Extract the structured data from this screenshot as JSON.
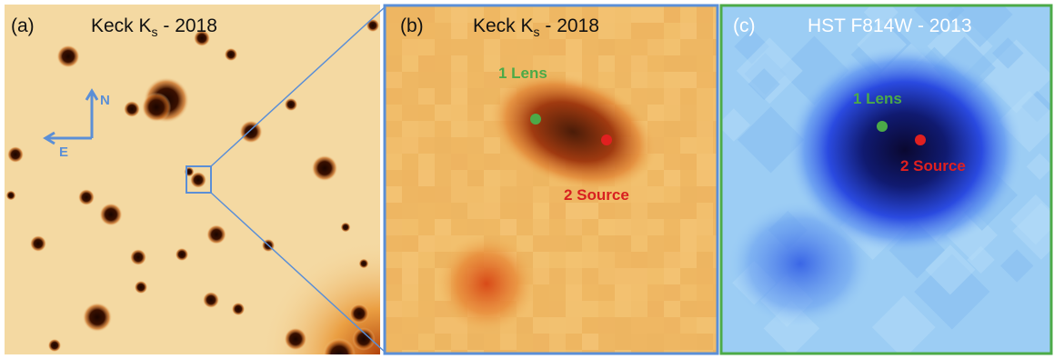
{
  "panels": [
    {
      "label": "(a)",
      "title": {
        "text": "Keck K",
        "subscript": "s",
        "suffix": " - 2018"
      },
      "compass": {
        "north": "N",
        "east": "E"
      }
    },
    {
      "label": "(b)",
      "title": {
        "text": "Keck K",
        "subscript": "s",
        "suffix": " - 2018"
      },
      "annotations": [
        {
          "text": "1 Lens"
        },
        {
          "text": "2 Source"
        }
      ]
    },
    {
      "label": "(c)",
      "title": {
        "text": "HST F814W - 2013"
      },
      "annotations": [
        {
          "text": "1 Lens"
        },
        {
          "text": "2 Source"
        }
      ]
    }
  ]
}
